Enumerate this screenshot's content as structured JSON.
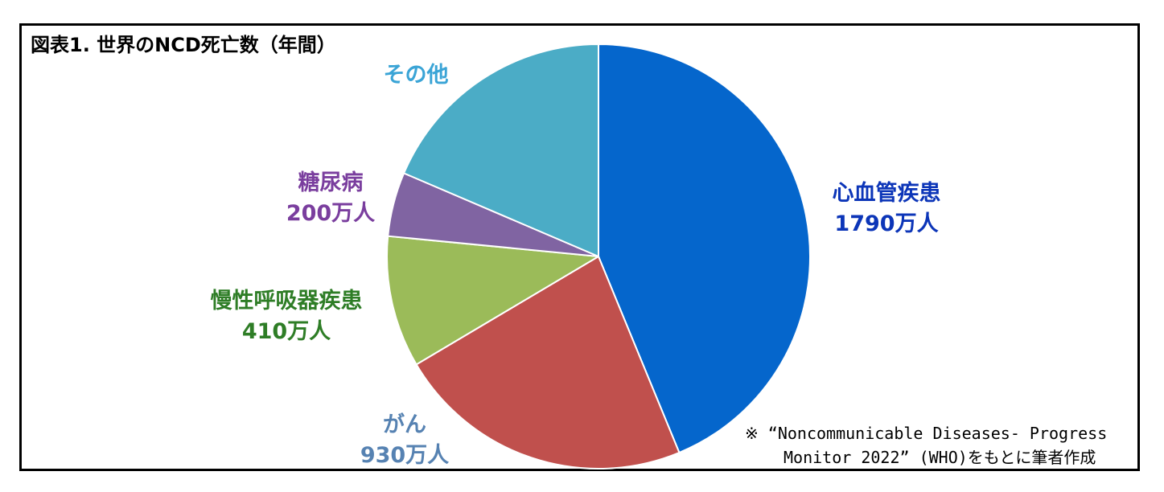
{
  "colors": {
    "frame": "#000000"
  },
  "chart_data": {
    "type": "pie",
    "title": "図表1. 世界のNCD死亡数（年間）",
    "unit": "万人",
    "slices": [
      {
        "label": "心血管疾患",
        "value": 1790,
        "value_label": "1790万人",
        "color": "#0566CC",
        "label_color": "#0C35B8"
      },
      {
        "label": "がん",
        "value": 930,
        "value_label": "930万人",
        "color": "#C0504D",
        "label_color": "#5682B2"
      },
      {
        "label": "慢性呼吸器疾患",
        "value": 410,
        "value_label": "410万人",
        "color": "#9BBB59",
        "label_color": "#2E7D26"
      },
      {
        "label": "糖尿病",
        "value": 200,
        "value_label": "200万人",
        "color": "#8064A2",
        "label_color": "#7A3E9E"
      },
      {
        "label": "その他",
        "value": 760,
        "value_label": "",
        "color": "#4BACC6",
        "label_color": "#3AA4D6"
      }
    ],
    "start_angle_deg": 0,
    "direction": "clockwise"
  },
  "source": {
    "line1": "※ “Noncommunicable Diseases- Progress",
    "line2": "Monitor 2022” (WHO)をもとに筆者作成"
  }
}
